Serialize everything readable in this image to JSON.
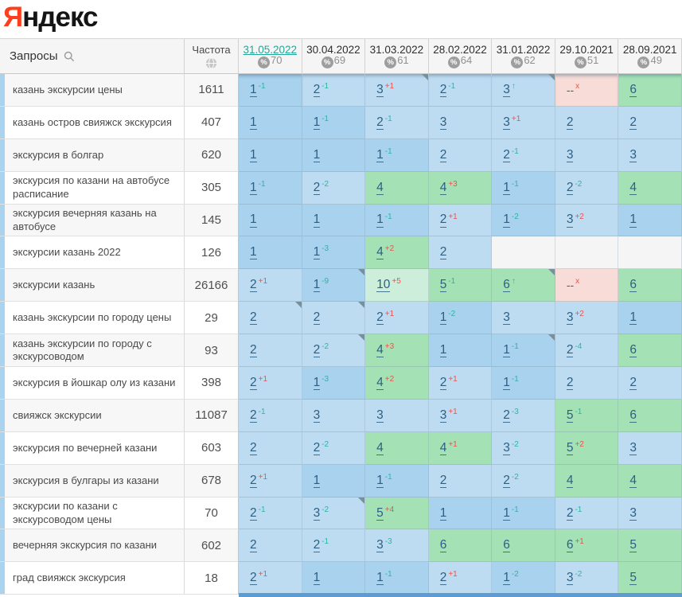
{
  "logo": {
    "red": "Я",
    "black": "ндекс"
  },
  "table": {
    "queries_header": "Запросы",
    "frequency_header": "Частота",
    "columns": [
      {
        "date": "31.05.2022",
        "percent": "70",
        "active": true
      },
      {
        "date": "30.04.2022",
        "percent": "69",
        "active": false
      },
      {
        "date": "31.03.2022",
        "percent": "61",
        "active": false
      },
      {
        "date": "28.02.2022",
        "percent": "64",
        "active": false
      },
      {
        "date": "31.01.2022",
        "percent": "62",
        "active": false
      },
      {
        "date": "29.10.2021",
        "percent": "51",
        "active": false
      },
      {
        "date": "28.09.2021",
        "percent": "49",
        "active": false
      }
    ],
    "rows": [
      {
        "query": "казань экскурсии цены",
        "frequency": "1611",
        "cells": [
          [
            "1",
            "-1",
            0
          ],
          [
            "2",
            "-1",
            0
          ],
          [
            "3",
            "+1",
            1
          ],
          [
            "2",
            "-1",
            0
          ],
          [
            "3",
            "↑",
            1
          ],
          [
            "--",
            "x",
            0
          ],
          [
            "6",
            "",
            0
          ]
        ]
      },
      {
        "query": "казань остров свияжск экскурсия",
        "frequency": "407",
        "cells": [
          [
            "1",
            "",
            0
          ],
          [
            "1",
            "-1",
            0
          ],
          [
            "2",
            "-1",
            0
          ],
          [
            "3",
            "",
            0
          ],
          [
            "3",
            "+1",
            0
          ],
          [
            "2",
            "",
            0
          ],
          [
            "2",
            "",
            0
          ]
        ]
      },
      {
        "query": "экскурсия в болгар",
        "frequency": "620",
        "cells": [
          [
            "1",
            "",
            0
          ],
          [
            "1",
            "",
            0
          ],
          [
            "1",
            "-1",
            0
          ],
          [
            "2",
            "",
            0
          ],
          [
            "2",
            "-1",
            0
          ],
          [
            "3",
            "",
            0
          ],
          [
            "3",
            "",
            0
          ]
        ]
      },
      {
        "query": "экскурсия по казани на автобусе расписание",
        "frequency": "305",
        "cells": [
          [
            "1",
            "-1",
            0
          ],
          [
            "2",
            "-2",
            0
          ],
          [
            "4",
            "",
            0
          ],
          [
            "4",
            "+3",
            0
          ],
          [
            "1",
            "-1",
            0
          ],
          [
            "2",
            "-2",
            0
          ],
          [
            "4",
            "",
            0
          ]
        ]
      },
      {
        "query": "экскурсия вечерняя казань на автобусе",
        "frequency": "145",
        "cells": [
          [
            "1",
            "",
            0
          ],
          [
            "1",
            "",
            0
          ],
          [
            "1",
            "-1",
            0
          ],
          [
            "2",
            "+1",
            0
          ],
          [
            "1",
            "-2",
            0
          ],
          [
            "3",
            "+2",
            0
          ],
          [
            "1",
            "",
            0
          ]
        ]
      },
      {
        "query": "экскурсии казань 2022",
        "frequency": "126",
        "cells": [
          [
            "1",
            "",
            0
          ],
          [
            "1",
            "-3",
            0
          ],
          [
            "4",
            "+2",
            0
          ],
          [
            "2",
            "",
            0
          ],
          [
            "",
            "",
            0
          ],
          [
            "",
            "",
            0
          ],
          [
            "",
            "",
            0
          ]
        ]
      },
      {
        "query": "экскурсии казань",
        "frequency": "26166",
        "cells": [
          [
            "2",
            "+1",
            0
          ],
          [
            "1",
            "-9",
            1
          ],
          [
            "10",
            "+5",
            0
          ],
          [
            "5",
            "-1",
            0
          ],
          [
            "6",
            "↑",
            1
          ],
          [
            "--",
            "x",
            0
          ],
          [
            "6",
            "",
            0
          ]
        ]
      },
      {
        "query": "казань экскурсии по городу цены",
        "frequency": "29",
        "cells": [
          [
            "2",
            "",
            1
          ],
          [
            "2",
            "",
            1
          ],
          [
            "2",
            "+1",
            0
          ],
          [
            "1",
            "-2",
            0
          ],
          [
            "3",
            "",
            0
          ],
          [
            "3",
            "+2",
            0
          ],
          [
            "1",
            "",
            0
          ]
        ]
      },
      {
        "query": "казань экскурсии по городу с экскурсоводом",
        "frequency": "93",
        "cells": [
          [
            "2",
            "",
            0
          ],
          [
            "2",
            "-2",
            1
          ],
          [
            "4",
            "+3",
            0
          ],
          [
            "1",
            "",
            0
          ],
          [
            "1",
            "-1",
            1
          ],
          [
            "2",
            "-4",
            0
          ],
          [
            "6",
            "",
            0
          ]
        ]
      },
      {
        "query": "экскурсия в йошкар олу из казани",
        "frequency": "398",
        "cells": [
          [
            "2",
            "+1",
            0
          ],
          [
            "1",
            "-3",
            0
          ],
          [
            "4",
            "+2",
            0
          ],
          [
            "2",
            "+1",
            0
          ],
          [
            "1",
            "-1",
            0
          ],
          [
            "2",
            "",
            0
          ],
          [
            "2",
            "",
            0
          ]
        ]
      },
      {
        "query": "свияжск экскурсии",
        "frequency": "11087",
        "cells": [
          [
            "2",
            "-1",
            0
          ],
          [
            "3",
            "",
            0
          ],
          [
            "3",
            "",
            0
          ],
          [
            "3",
            "+1",
            0
          ],
          [
            "2",
            "-3",
            0
          ],
          [
            "5",
            "-1",
            0
          ],
          [
            "6",
            "",
            0
          ]
        ]
      },
      {
        "query": "экскурсия по вечерней казани",
        "frequency": "603",
        "cells": [
          [
            "2",
            "",
            0
          ],
          [
            "2",
            "-2",
            0
          ],
          [
            "4",
            "",
            0
          ],
          [
            "4",
            "+1",
            0
          ],
          [
            "3",
            "-2",
            0
          ],
          [
            "5",
            "+2",
            0
          ],
          [
            "3",
            "",
            0
          ]
        ]
      },
      {
        "query": "экскурсия в булгары из казани",
        "frequency": "678",
        "cells": [
          [
            "2",
            "+1",
            0
          ],
          [
            "1",
            "",
            0
          ],
          [
            "1",
            "-1",
            0
          ],
          [
            "2",
            "",
            0
          ],
          [
            "2",
            "-2",
            0
          ],
          [
            "4",
            "",
            0
          ],
          [
            "4",
            "",
            0
          ]
        ]
      },
      {
        "query": "экскурсии по казани с экскурсоводом цены",
        "frequency": "70",
        "cells": [
          [
            "2",
            "-1",
            0
          ],
          [
            "3",
            "-2",
            1
          ],
          [
            "5",
            "+4",
            0
          ],
          [
            "1",
            "",
            0
          ],
          [
            "1",
            "-1",
            0
          ],
          [
            "2",
            "-1",
            0
          ],
          [
            "3",
            "",
            0
          ]
        ]
      },
      {
        "query": "вечерняя экскурсия по казани",
        "frequency": "602",
        "cells": [
          [
            "2",
            "",
            0
          ],
          [
            "2",
            "-1",
            0
          ],
          [
            "3",
            "-3",
            0
          ],
          [
            "6",
            "",
            0
          ],
          [
            "6",
            "",
            0
          ],
          [
            "6",
            "+1",
            0
          ],
          [
            "5",
            "",
            0
          ]
        ]
      },
      {
        "query": "град свияжск экскурсия",
        "frequency": "18",
        "cells": [
          [
            "2",
            "+1",
            0
          ],
          [
            "1",
            "",
            0
          ],
          [
            "1",
            "-1",
            0
          ],
          [
            "2",
            "+1",
            0
          ],
          [
            "1",
            "-2",
            0
          ],
          [
            "3",
            "-2",
            0
          ],
          [
            "5",
            "",
            0
          ]
        ]
      }
    ]
  },
  "colors": {
    "logo_red": "#fc3f1d",
    "active_date_link": "#23a79b",
    "delta_better": "#2fb3a4",
    "delta_worse": "#e2574f",
    "pos1_bg": "#a8d2ee",
    "pos23_bg": "#bddcf2",
    "pos4_9_bg": "#a4e2b6",
    "pos10_bg": "#cdeeda",
    "lost_bg": "#f8dcd8",
    "empty_bg": "#f5f5f5",
    "position_link": "#2d5f83",
    "scrollbar": "#5d9bd3",
    "marker": "#78909c"
  }
}
